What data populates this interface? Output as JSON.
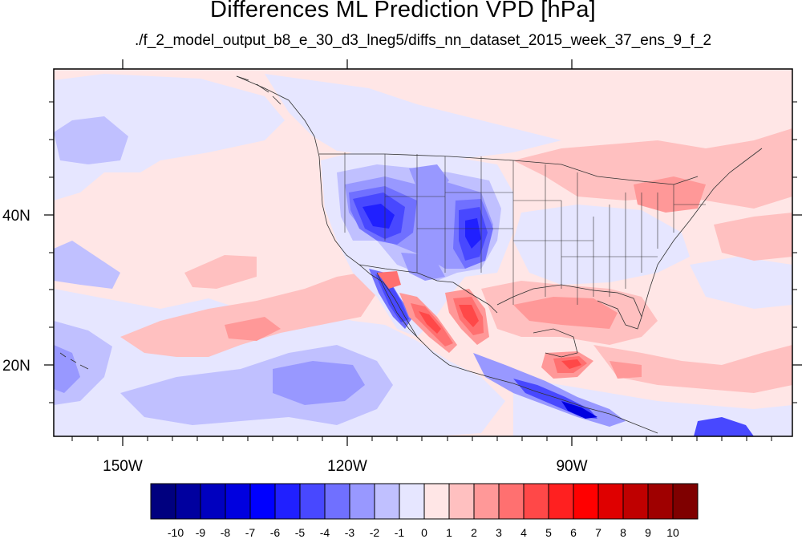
{
  "title": "Differences ML Prediction VPD [hPa]",
  "subtitle": "./f_2_model_output_b8_e_30_d3_lneg5/diffs_nn_dataset_2015_week_37_ens_9_f_2",
  "axes": {
    "lon_labels": [
      "150W",
      "120W",
      "90W"
    ],
    "lat_labels": [
      "40N",
      "20N"
    ]
  },
  "colorbar": {
    "labels": [
      "-10",
      "-9",
      "-8",
      "-7",
      "-6",
      "-5",
      "-4",
      "-3",
      "-2",
      "-1",
      "0",
      "1",
      "2",
      "3",
      "4",
      "5",
      "6",
      "7",
      "8",
      "9",
      "10"
    ],
    "colors": [
      "#00007f",
      "#00009f",
      "#0000bf",
      "#0000df",
      "#0000ff",
      "#2020ff",
      "#4848ff",
      "#7070ff",
      "#9898ff",
      "#c0c0ff",
      "#e6e6ff",
      "#ffe6e6",
      "#ffc0c0",
      "#ff9898",
      "#ff7070",
      "#ff4848",
      "#ff2020",
      "#ff0000",
      "#df0000",
      "#bf0000",
      "#9f0000",
      "#7f0000"
    ]
  }
}
